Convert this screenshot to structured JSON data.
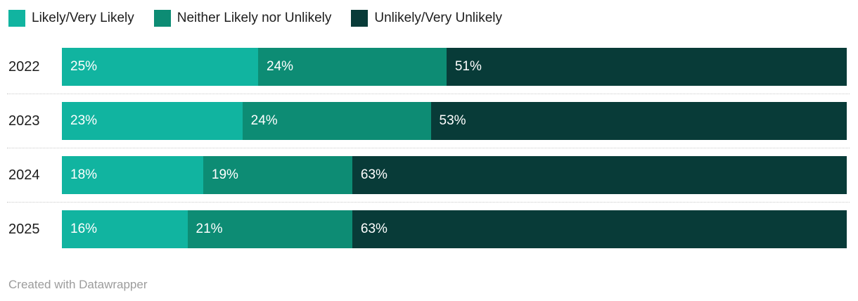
{
  "chart_data": {
    "type": "bar",
    "orientation": "horizontal",
    "stacked": true,
    "categories": [
      "2022",
      "2023",
      "2024",
      "2025"
    ],
    "series": [
      {
        "name": "Likely/Very Likely",
        "color": "#11b4a0",
        "values": [
          25,
          23,
          18,
          16
        ]
      },
      {
        "name": "Neither Likely nor Unlikely",
        "color": "#0d8c74",
        "values": [
          24,
          24,
          19,
          21
        ]
      },
      {
        "name": "Unlikely/Very Unlikely",
        "color": "#083b38",
        "values": [
          51,
          53,
          63,
          63
        ]
      }
    ],
    "value_suffix": "%",
    "value_label_color": "#ffffff",
    "xlim": [
      0,
      100
    ],
    "legend_position": "top",
    "grid": false,
    "row_separator_style": "dotted"
  },
  "footer": {
    "attribution": "Created with Datawrapper"
  }
}
